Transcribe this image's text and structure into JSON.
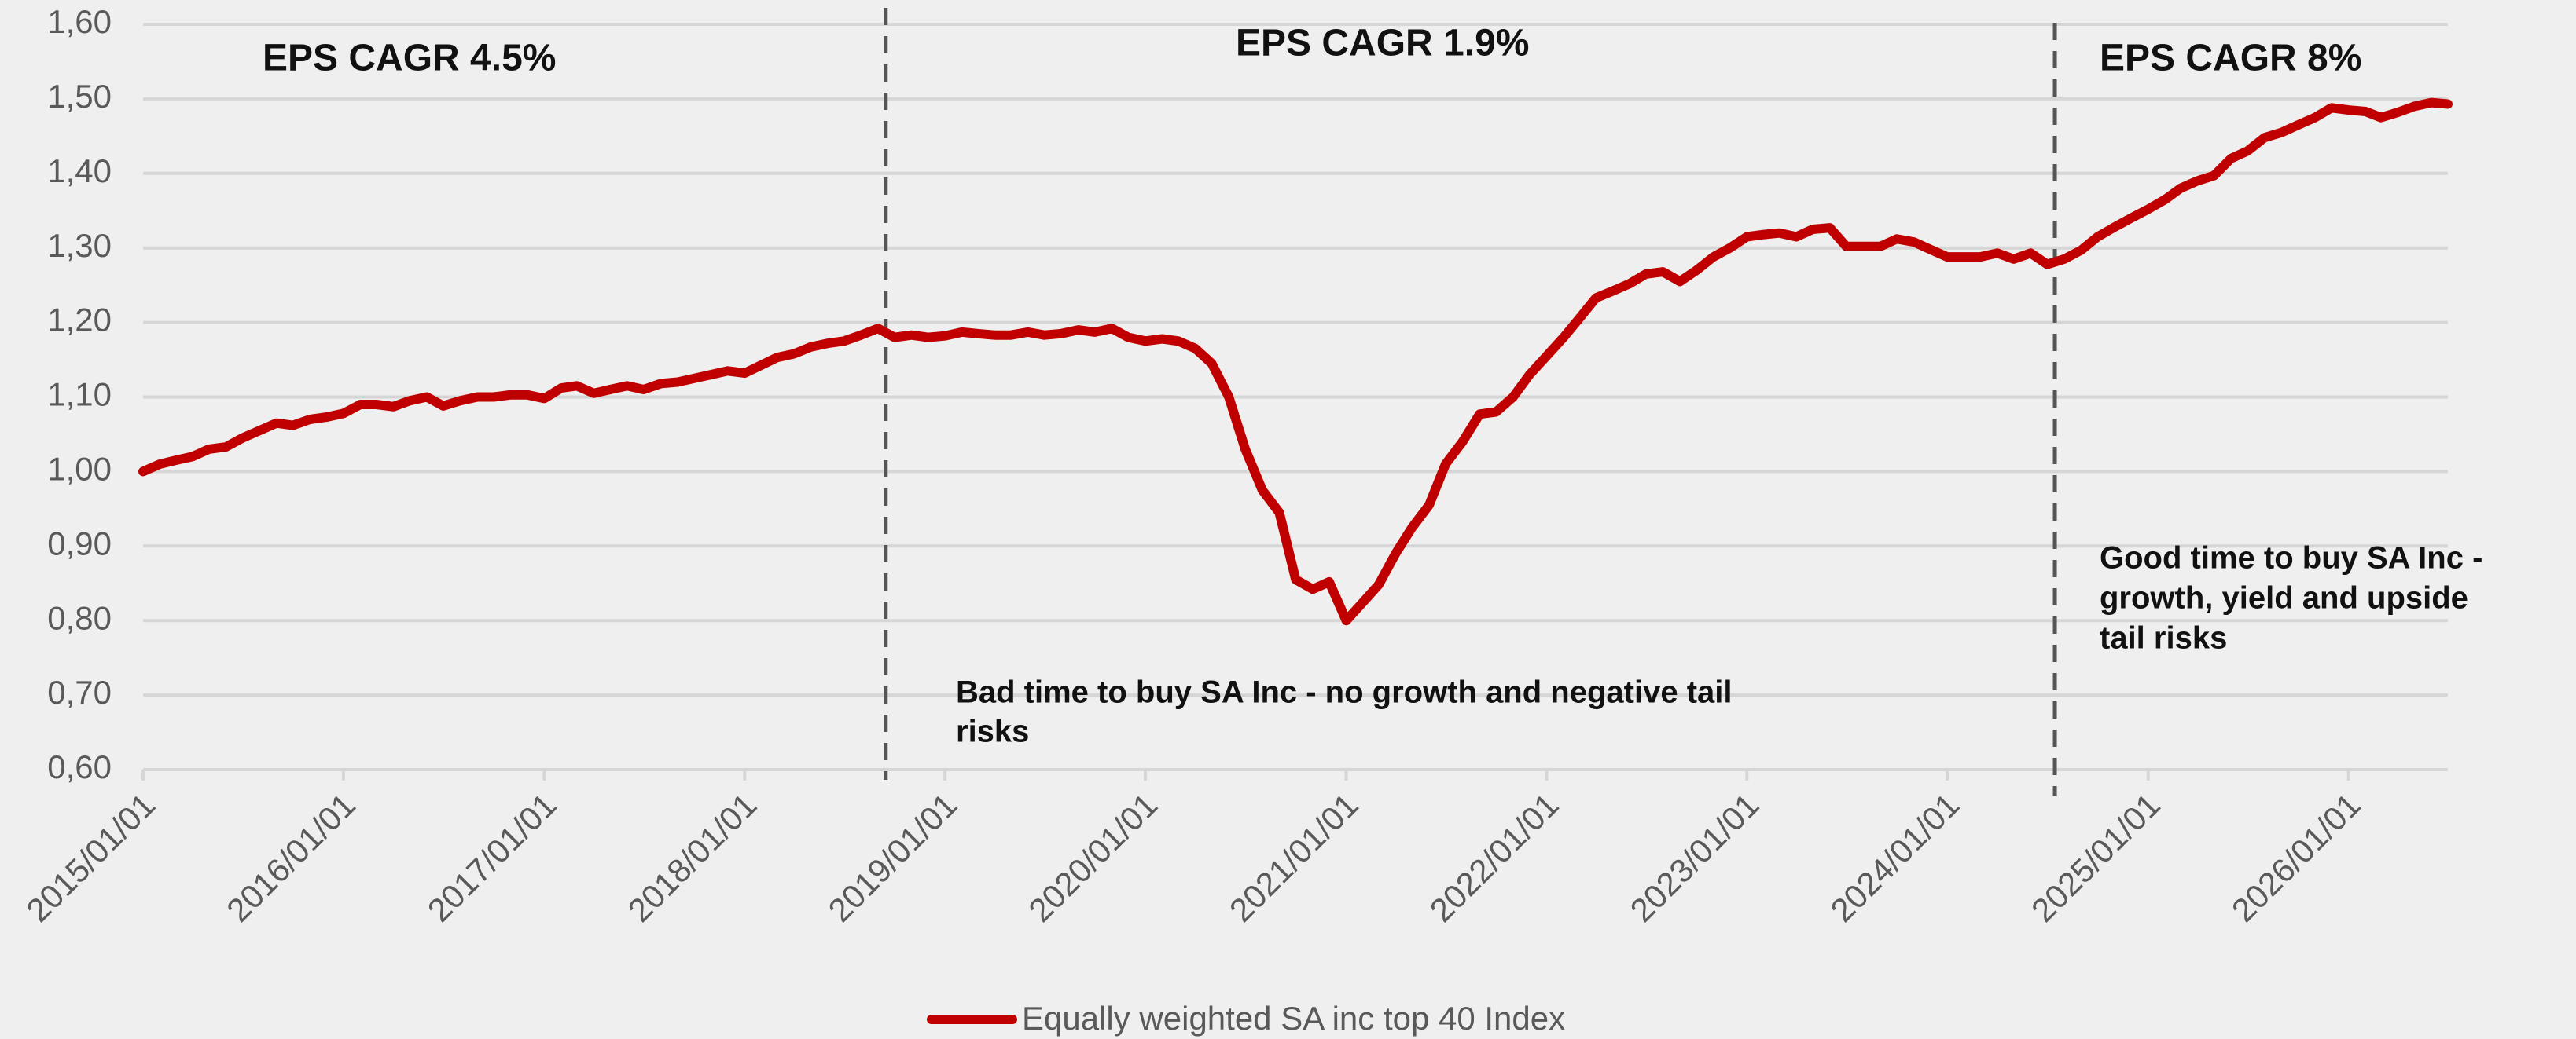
{
  "chart_data": {
    "type": "line",
    "x": [
      "2015/01/01",
      "2015/02/01",
      "2015/03/01",
      "2015/04/01",
      "2015/05/01",
      "2015/06/01",
      "2015/07/01",
      "2015/08/01",
      "2015/09/01",
      "2015/10/01",
      "2015/11/01",
      "2015/12/01",
      "2016/01/01",
      "2016/02/01",
      "2016/03/01",
      "2016/04/01",
      "2016/05/01",
      "2016/06/01",
      "2016/07/01",
      "2016/08/01",
      "2016/09/01",
      "2016/10/01",
      "2016/11/01",
      "2016/12/01",
      "2017/01/01",
      "2017/02/01",
      "2017/03/01",
      "2017/04/01",
      "2017/05/01",
      "2017/06/01",
      "2017/07/01",
      "2017/08/01",
      "2017/09/01",
      "2017/10/01",
      "2017/11/01",
      "2017/12/01",
      "2018/01/01",
      "2018/02/01",
      "2018/03/01",
      "2018/04/01",
      "2018/05/01",
      "2018/06/01",
      "2018/07/01",
      "2018/08/01",
      "2018/09/01",
      "2018/10/01",
      "2018/11/01",
      "2018/12/01",
      "2019/01/01",
      "2019/02/01",
      "2019/03/01",
      "2019/04/01",
      "2019/05/01",
      "2019/06/01",
      "2019/07/01",
      "2019/08/01",
      "2019/09/01",
      "2019/10/01",
      "2019/11/01",
      "2019/12/01",
      "2020/01/01",
      "2020/02/01",
      "2020/03/01",
      "2020/04/01",
      "2020/05/01",
      "2020/06/01",
      "2020/07/01",
      "2020/08/01",
      "2020/09/01",
      "2020/10/01",
      "2020/11/01",
      "2020/12/01",
      "2021/01/01",
      "2021/02/01",
      "2021/03/01",
      "2021/04/01",
      "2021/05/01",
      "2021/06/01",
      "2021/07/01",
      "2021/08/01",
      "2021/09/01",
      "2021/10/01",
      "2021/11/01",
      "2021/12/01",
      "2022/01/01",
      "2022/02/01",
      "2022/03/01",
      "2022/04/01",
      "2022/05/01",
      "2022/06/01",
      "2022/07/01",
      "2022/08/01",
      "2022/09/01",
      "2022/10/01",
      "2022/11/01",
      "2022/12/01",
      "2023/01/01",
      "2023/02/01",
      "2023/03/01",
      "2023/04/01",
      "2023/05/01",
      "2023/06/01",
      "2023/07/01",
      "2023/08/01",
      "2023/09/01",
      "2023/10/01",
      "2023/11/01",
      "2023/12/01",
      "2024/01/01",
      "2024/02/01",
      "2024/03/01",
      "2024/04/01",
      "2024/05/01",
      "2024/06/01",
      "2024/07/01",
      "2024/08/01",
      "2024/09/01",
      "2024/10/01",
      "2024/11/01",
      "2024/12/01",
      "2025/01/01",
      "2025/02/01",
      "2025/03/01",
      "2025/04/01",
      "2025/05/01",
      "2025/06/01",
      "2025/07/01",
      "2025/08/01",
      "2025/09/01",
      "2025/10/01",
      "2025/11/01",
      "2025/12/01",
      "2026/01/01",
      "2026/02/01",
      "2026/03/01",
      "2026/04/01",
      "2026/05/01",
      "2026/06/01",
      "2026/07/01"
    ],
    "series": [
      {
        "name": "Equally weighted SA inc top 40 Index",
        "color": "#c00000",
        "values": [
          1.0,
          1.01,
          1.015,
          1.02,
          1.03,
          1.033,
          1.045,
          1.055,
          1.065,
          1.062,
          1.07,
          1.073,
          1.078,
          1.09,
          1.09,
          1.087,
          1.095,
          1.1,
          1.088,
          1.095,
          1.1,
          1.1,
          1.103,
          1.103,
          1.098,
          1.112,
          1.115,
          1.105,
          1.11,
          1.115,
          1.11,
          1.118,
          1.12,
          1.125,
          1.13,
          1.135,
          1.132,
          1.143,
          1.153,
          1.158,
          1.167,
          1.172,
          1.175,
          1.183,
          1.192,
          1.18,
          1.183,
          1.18,
          1.182,
          1.187,
          1.185,
          1.183,
          1.183,
          1.187,
          1.183,
          1.185,
          1.19,
          1.187,
          1.192,
          1.18,
          1.175,
          1.178,
          1.175,
          1.165,
          1.145,
          1.1,
          1.03,
          0.975,
          0.945,
          0.855,
          0.842,
          0.852,
          0.8,
          0.825,
          0.848,
          0.89,
          0.925,
          0.955,
          1.01,
          1.04,
          1.077,
          1.08,
          1.1,
          1.13,
          1.155,
          1.18,
          1.205,
          1.233,
          1.242,
          1.252,
          1.265,
          1.268,
          1.255,
          1.27,
          1.288,
          1.3,
          1.315,
          1.318,
          1.32,
          1.315,
          1.325,
          1.327,
          1.302,
          1.302,
          1.302,
          1.312,
          1.308,
          1.298,
          1.288,
          1.288,
          1.288,
          1.293,
          1.285,
          1.293,
          1.278,
          1.285,
          1.297,
          1.315,
          1.328,
          1.34,
          1.352,
          1.365,
          1.38,
          1.39,
          1.397,
          1.42,
          1.43,
          1.448,
          1.455,
          1.465,
          1.475,
          1.488,
          1.485,
          1.483,
          1.475,
          1.482,
          1.49,
          1.495,
          1.493
        ]
      }
    ],
    "xlim": [
      "2015/01/01",
      "2026/07/01"
    ],
    "xticks": [
      "2015/01/01",
      "2016/01/01",
      "2017/01/01",
      "2018/01/01",
      "2019/01/01",
      "2020/01/01",
      "2021/01/01",
      "2022/01/01",
      "2023/01/01",
      "2024/01/01",
      "2025/01/01",
      "2026/01/01"
    ],
    "ylim": [
      0.6,
      1.6
    ],
    "yticks": [
      {
        "value": 0.6,
        "label": "0,60"
      },
      {
        "value": 0.7,
        "label": "0,70"
      },
      {
        "value": 0.8,
        "label": "0,80"
      },
      {
        "value": 0.9,
        "label": "0,90"
      },
      {
        "value": 1.0,
        "label": "1,00"
      },
      {
        "value": 1.1,
        "label": "1,10"
      },
      {
        "value": 1.2,
        "label": "1,20"
      },
      {
        "value": 1.3,
        "label": "1,30"
      },
      {
        "value": 1.4,
        "label": "1,40"
      },
      {
        "value": 1.5,
        "label": "1,50"
      },
      {
        "value": 1.6,
        "label": "1,60"
      }
    ],
    "grid": true,
    "legend": "bottom",
    "markers": [
      "2018/09/15",
      "2024/07/15"
    ],
    "annotations": [
      {
        "lines": [
          "EPS CAGR 4.5%"
        ]
      },
      {
        "lines": [
          "EPS CAGR 1.9%"
        ]
      },
      {
        "lines": [
          "EPS CAGR 8%"
        ]
      },
      {
        "lines": [
          "Bad time to buy SA Inc - no growth and negative tail",
          "risks"
        ]
      },
      {
        "lines": [
          "Good time to buy SA Inc -",
          "growth, yield  and upside",
          "tail risks"
        ]
      }
    ]
  }
}
